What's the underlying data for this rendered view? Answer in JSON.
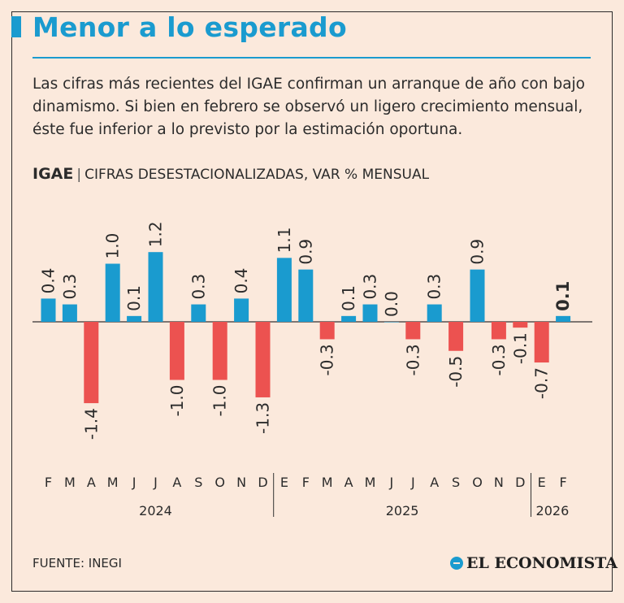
{
  "header": {
    "title": "Menor a lo esperado",
    "description": "Las cifras más recientes del IGAE confirman un arranque de año con bajo dinamismo. Si bien en febrero se observó un ligero crecimiento mensual, éste fue inferior a lo previsto por la estimación oportuna.",
    "indicator": "IGAE",
    "unit_label": "CIFRAS DESESTACIONALIZADAS, VAR % MENSUAL"
  },
  "footer": {
    "source": "FUENTE: INEGI",
    "brand": "EL ECONOMISTA"
  },
  "colors": {
    "positive": "#1a9bcf",
    "negative": "#ec5250",
    "accent": "#1a9bcf",
    "background": "#fbe9dc"
  },
  "chart_data": {
    "type": "bar",
    "categories": [
      "F",
      "M",
      "A",
      "M",
      "J",
      "J",
      "A",
      "S",
      "O",
      "N",
      "D",
      "E",
      "F",
      "M",
      "A",
      "M",
      "J",
      "J",
      "A",
      "S",
      "O",
      "N",
      "D",
      "E",
      "F"
    ],
    "years": [
      {
        "label": "2024",
        "start": 0,
        "end": 10
      },
      {
        "label": "2025",
        "start": 11,
        "end": 22
      },
      {
        "label": "2026",
        "start": 23,
        "end": 24
      }
    ],
    "values": [
      0.4,
      0.3,
      -1.4,
      1.0,
      0.1,
      1.2,
      -1.0,
      0.3,
      -1.0,
      0.4,
      -1.3,
      1.1,
      0.9,
      -0.3,
      0.1,
      0.3,
      0.0,
      -0.3,
      0.3,
      -0.5,
      0.9,
      -0.3,
      -0.1,
      -0.7,
      0.1
    ],
    "value_labels": [
      "0.4",
      "0.3",
      "-1.4",
      "1.0",
      "0.1",
      "1.2",
      "-1.0",
      "0.3",
      "-1.0",
      "0.4",
      "-1.3",
      "1.1",
      "0.9",
      "-0.3",
      "0.1",
      "0.3",
      "0.0",
      "-0.3",
      "0.3",
      "-0.5",
      "0.9",
      "-0.3",
      "-0.1",
      "-0.7",
      "0.1"
    ],
    "highlight_index": 24,
    "xlabel": "",
    "ylabel": "",
    "legend": "none",
    "grid": false
  }
}
